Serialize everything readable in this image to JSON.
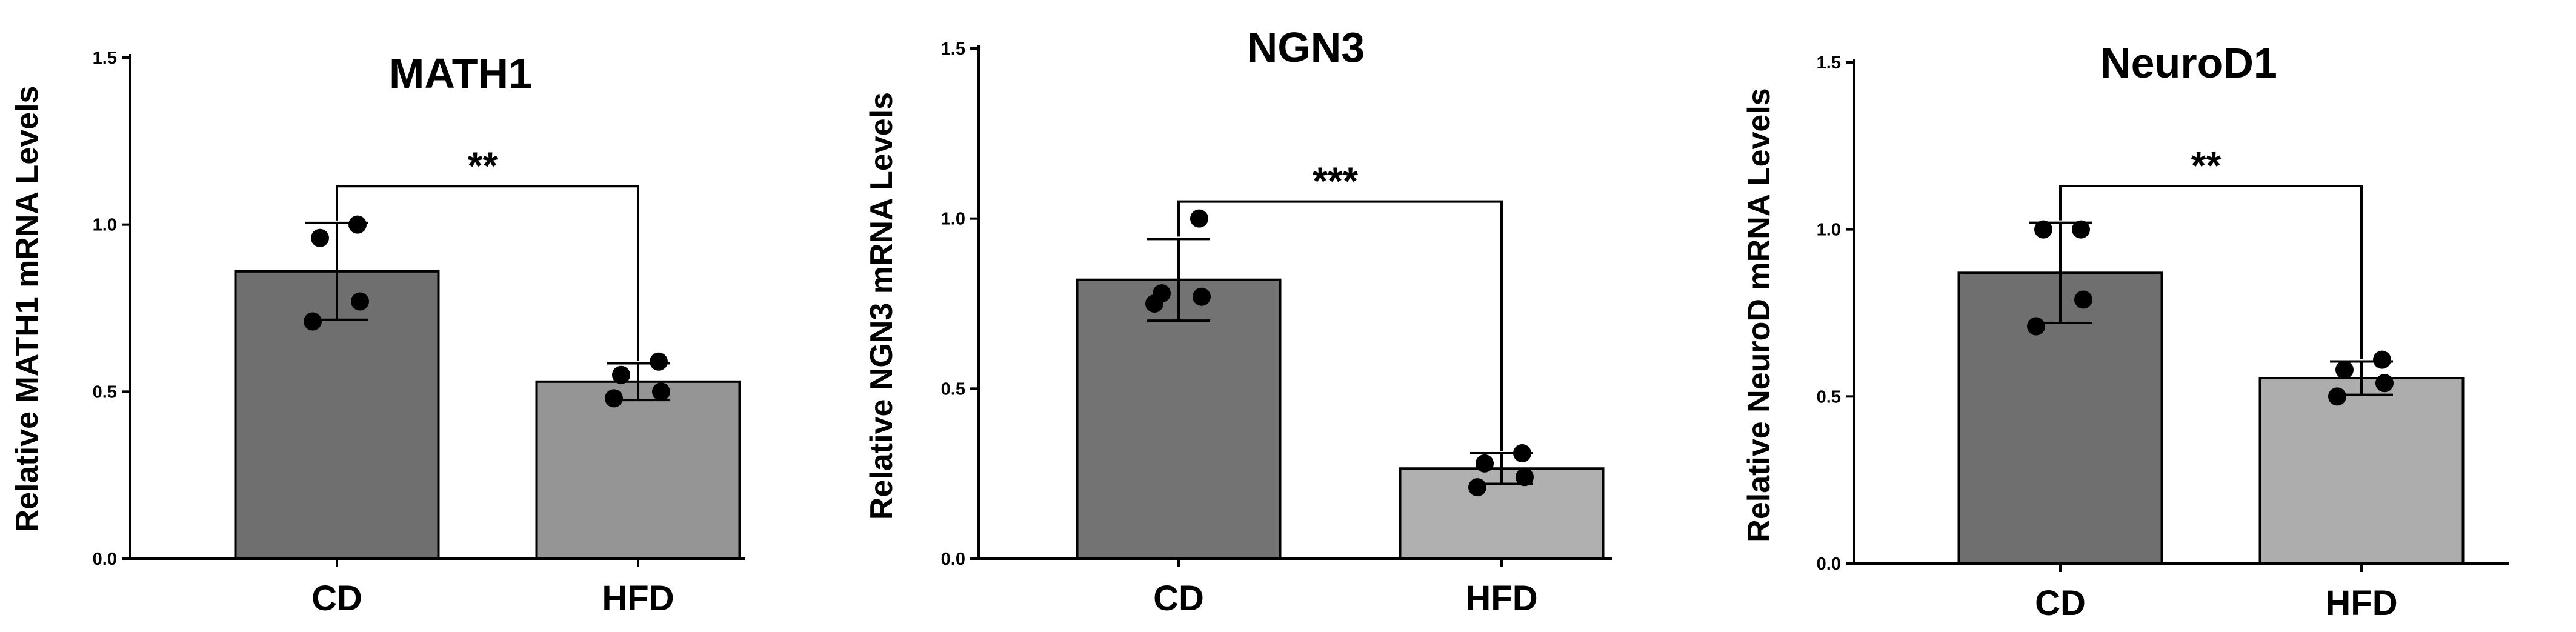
{
  "chart_data": [
    {
      "type": "bar",
      "title": "MATH1",
      "ylabel": "Relative MATH1 mRNA Levels",
      "xlabel": "",
      "categories": [
        "CD",
        "HFD"
      ],
      "values": [
        0.86,
        0.53
      ],
      "error": [
        0.145,
        0.055
      ],
      "points": [
        [
          0.71,
          0.77,
          0.96,
          1.0
        ],
        [
          0.48,
          0.5,
          0.55,
          0.59
        ]
      ],
      "bar_colors": [
        "#6f6f6f",
        "#959595"
      ],
      "ylim": [
        0,
        1.5
      ],
      "yticks": [
        "0.0",
        "0.5",
        "1.0",
        "1.5"
      ],
      "significance": "**"
    },
    {
      "type": "bar",
      "title": "NGN3",
      "ylabel": "Relative NGN3 mRNA Levels",
      "xlabel": "",
      "categories": [
        "CD",
        "HFD"
      ],
      "values": [
        0.82,
        0.265
      ],
      "error": [
        0.12,
        0.045
      ],
      "points": [
        [
          0.75,
          0.77,
          0.78,
          1.0
        ],
        [
          0.21,
          0.24,
          0.28,
          0.31
        ]
      ],
      "bar_colors": [
        "#737373",
        "#b0b0b0"
      ],
      "ylim": [
        0,
        1.5
      ],
      "yticks": [
        "0.0",
        "0.5",
        "1.0",
        "1.5"
      ],
      "significance": "***"
    },
    {
      "type": "bar",
      "title": "NeuroD1",
      "ylabel": "Relative NeuroD mRNA Levels",
      "xlabel": "",
      "categories": [
        "CD",
        "HFD"
      ],
      "values": [
        0.87,
        0.555
      ],
      "error": [
        0.15,
        0.05
      ],
      "points": [
        [
          0.71,
          0.79,
          1.0,
          1.0
        ],
        [
          0.5,
          0.54,
          0.58,
          0.61
        ]
      ],
      "bar_colors": [
        "#6f6f6f",
        "#adadad"
      ],
      "ylim": [
        0,
        1.5
      ],
      "yticks": [
        "0.0",
        "0.5",
        "1.0",
        "1.5"
      ],
      "significance": "**"
    }
  ]
}
